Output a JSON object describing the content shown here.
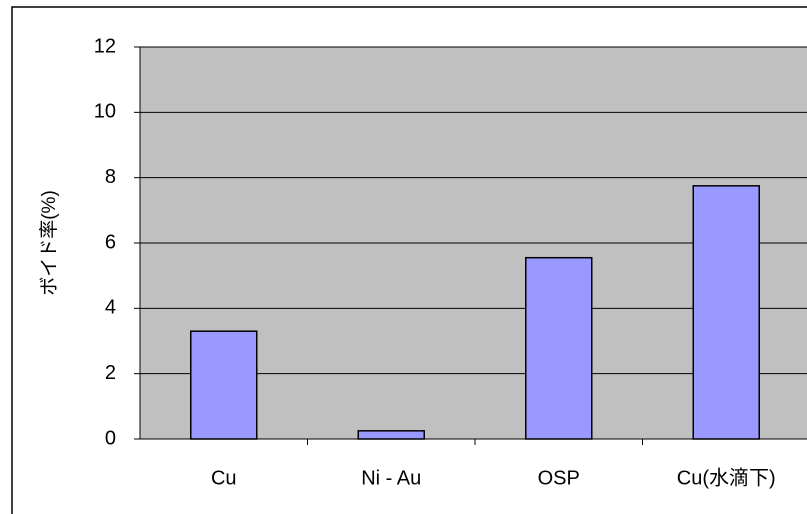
{
  "chart_data": {
    "type": "bar",
    "ylabel": "ボイド率(%)",
    "categories": [
      "Cu",
      "Ni - Au",
      "OSP",
      "Cu(水滴下)"
    ],
    "values": [
      3.3,
      0.25,
      5.55,
      7.75
    ],
    "color": "#9999ff",
    "ylim": [
      0,
      12
    ],
    "yticks": [
      0,
      2,
      4,
      6,
      8,
      10,
      12
    ],
    "grid": true
  }
}
